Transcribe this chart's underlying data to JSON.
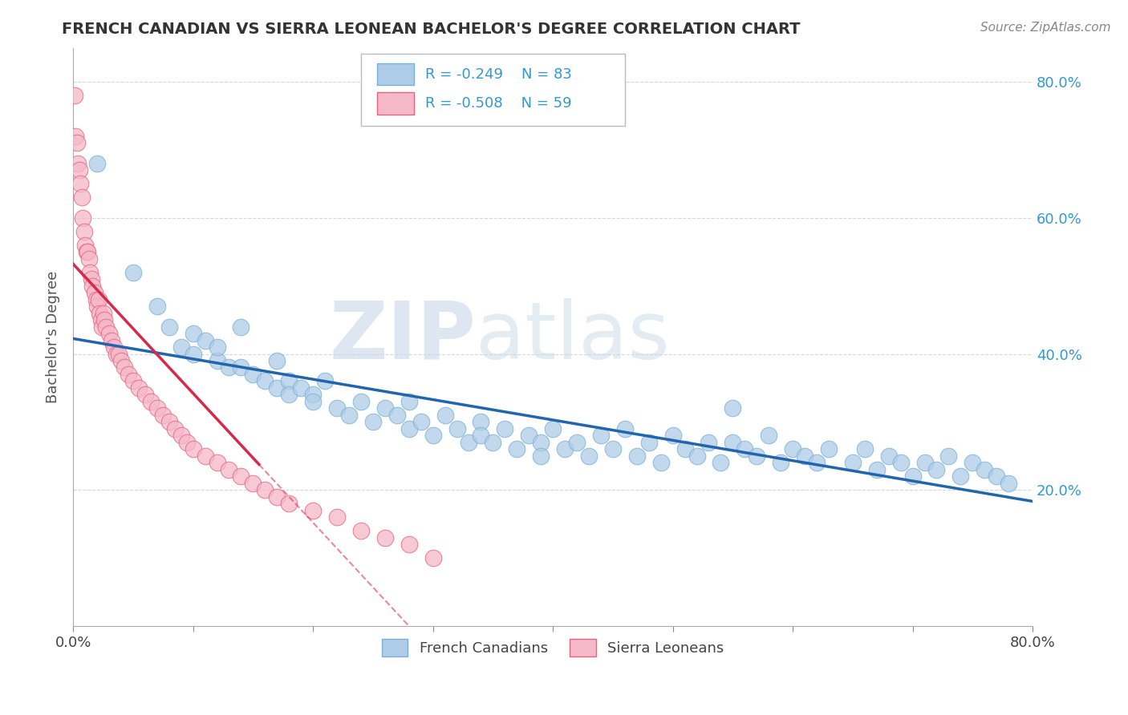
{
  "title": "FRENCH CANADIAN VS SIERRA LEONEAN BACHELOR'S DEGREE CORRELATION CHART",
  "source_text": "Source: ZipAtlas.com",
  "ylabel": "Bachelor's Degree",
  "xlim": [
    0.0,
    0.8
  ],
  "ylim": [
    0.0,
    0.85
  ],
  "blue_color": "#aecce8",
  "blue_edge": "#7ab0d4",
  "pink_color": "#f5b8c8",
  "pink_edge": "#e8637f",
  "blue_line_color": "#2166ac",
  "pink_line_color": "#d6294b",
  "legend_label_blue": "French Canadians",
  "legend_label_pink": "Sierra Leoneans",
  "watermark_color": "#d0dce8",
  "background_color": "#ffffff",
  "grid_color": "#cccccc",
  "blue_x": [
    0.02,
    0.05,
    0.07,
    0.08,
    0.09,
    0.1,
    0.1,
    0.11,
    0.12,
    0.12,
    0.13,
    0.14,
    0.14,
    0.15,
    0.16,
    0.17,
    0.17,
    0.18,
    0.18,
    0.19,
    0.2,
    0.2,
    0.21,
    0.22,
    0.23,
    0.24,
    0.25,
    0.26,
    0.27,
    0.28,
    0.28,
    0.29,
    0.3,
    0.31,
    0.32,
    0.33,
    0.34,
    0.34,
    0.35,
    0.36,
    0.37,
    0.38,
    0.39,
    0.39,
    0.4,
    0.41,
    0.42,
    0.43,
    0.44,
    0.45,
    0.46,
    0.47,
    0.48,
    0.49,
    0.5,
    0.51,
    0.52,
    0.53,
    0.54,
    0.55,
    0.55,
    0.56,
    0.57,
    0.58,
    0.59,
    0.6,
    0.61,
    0.62,
    0.63,
    0.65,
    0.66,
    0.67,
    0.68,
    0.69,
    0.7,
    0.71,
    0.72,
    0.73,
    0.74,
    0.75,
    0.76,
    0.77,
    0.78
  ],
  "blue_y": [
    0.68,
    0.52,
    0.47,
    0.44,
    0.41,
    0.43,
    0.4,
    0.42,
    0.39,
    0.41,
    0.38,
    0.44,
    0.38,
    0.37,
    0.36,
    0.39,
    0.35,
    0.36,
    0.34,
    0.35,
    0.34,
    0.33,
    0.36,
    0.32,
    0.31,
    0.33,
    0.3,
    0.32,
    0.31,
    0.29,
    0.33,
    0.3,
    0.28,
    0.31,
    0.29,
    0.27,
    0.3,
    0.28,
    0.27,
    0.29,
    0.26,
    0.28,
    0.27,
    0.25,
    0.29,
    0.26,
    0.27,
    0.25,
    0.28,
    0.26,
    0.29,
    0.25,
    0.27,
    0.24,
    0.28,
    0.26,
    0.25,
    0.27,
    0.24,
    0.27,
    0.32,
    0.26,
    0.25,
    0.28,
    0.24,
    0.26,
    0.25,
    0.24,
    0.26,
    0.24,
    0.26,
    0.23,
    0.25,
    0.24,
    0.22,
    0.24,
    0.23,
    0.25,
    0.22,
    0.24,
    0.23,
    0.22,
    0.21
  ],
  "pink_x": [
    0.001,
    0.002,
    0.003,
    0.004,
    0.005,
    0.006,
    0.007,
    0.008,
    0.009,
    0.01,
    0.011,
    0.012,
    0.013,
    0.014,
    0.015,
    0.016,
    0.018,
    0.019,
    0.02,
    0.021,
    0.022,
    0.023,
    0.024,
    0.025,
    0.026,
    0.027,
    0.03,
    0.032,
    0.034,
    0.036,
    0.038,
    0.04,
    0.043,
    0.046,
    0.05,
    0.055,
    0.06,
    0.065,
    0.07,
    0.075,
    0.08,
    0.085,
    0.09,
    0.095,
    0.1,
    0.11,
    0.12,
    0.13,
    0.14,
    0.15,
    0.16,
    0.17,
    0.18,
    0.2,
    0.22,
    0.24,
    0.26,
    0.28,
    0.3
  ],
  "pink_y": [
    0.78,
    0.72,
    0.71,
    0.68,
    0.67,
    0.65,
    0.63,
    0.6,
    0.58,
    0.56,
    0.55,
    0.55,
    0.54,
    0.52,
    0.51,
    0.5,
    0.49,
    0.48,
    0.47,
    0.48,
    0.46,
    0.45,
    0.44,
    0.46,
    0.45,
    0.44,
    0.43,
    0.42,
    0.41,
    0.4,
    0.4,
    0.39,
    0.38,
    0.37,
    0.36,
    0.35,
    0.34,
    0.33,
    0.32,
    0.31,
    0.3,
    0.29,
    0.28,
    0.27,
    0.26,
    0.25,
    0.24,
    0.23,
    0.22,
    0.21,
    0.2,
    0.19,
    0.18,
    0.17,
    0.16,
    0.14,
    0.13,
    0.12,
    0.1
  ]
}
